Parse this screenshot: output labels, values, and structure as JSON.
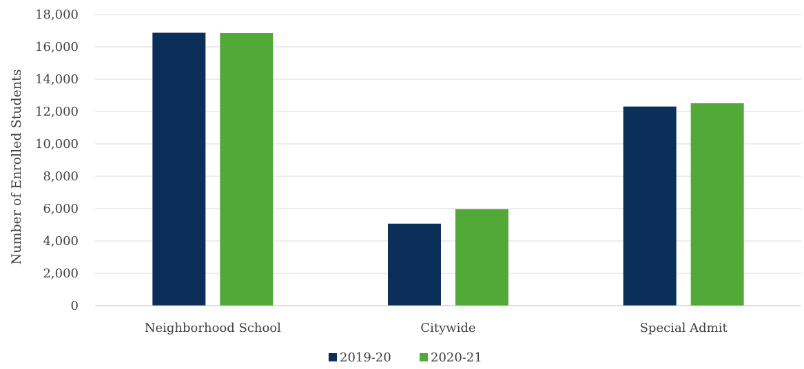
{
  "chart_data": {
    "type": "bar",
    "title": "",
    "xlabel": "",
    "ylabel": "Number of Enrolled Students",
    "categories": [
      "Neighborhood School",
      "Citywide",
      "Special Admit"
    ],
    "series": [
      {
        "name": "2019-20",
        "color": "#0b2f58",
        "values": [
          16870,
          5070,
          12310
        ]
      },
      {
        "name": "2020-21",
        "color": "#52a938",
        "values": [
          16850,
          5960,
          12510
        ]
      }
    ],
    "ylim": [
      0,
      18000
    ],
    "y_ticks": [
      0,
      2000,
      4000,
      6000,
      8000,
      10000,
      12000,
      14000,
      16000,
      18000
    ],
    "y_tick_labels": [
      "0",
      "2,000",
      "4,000",
      "6,000",
      "8,000",
      "10,000",
      "12,000",
      "14,000",
      "16,000",
      "18,000"
    ],
    "grid": true,
    "legend_position": "bottom-center"
  }
}
